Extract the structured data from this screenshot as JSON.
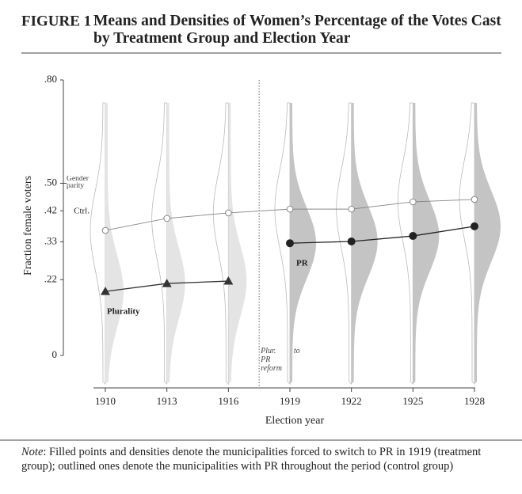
{
  "figure_label": "FIGURE 1",
  "chart_data": {
    "type": "line",
    "title": "Means and Densities of Women’s Percentage of the Votes Cast by Treatment Group and Election Year",
    "x_label": "Election year",
    "y_label": "Fraction female voters",
    "x": [
      1910,
      1913,
      1916,
      1919,
      1922,
      1925,
      1928
    ],
    "xlim": [
      1910,
      1928
    ],
    "ylim": [
      0,
      0.8
    ],
    "yticks": [
      0,
      {
        "value": 0.22,
        "label": ".22"
      },
      {
        "value": 0.33,
        "label": ".33"
      },
      {
        "value": 0.42,
        "label": ".42"
      },
      {
        "value": 0.5,
        "label": ".50"
      },
      {
        "value": 0.8,
        "label": ".80"
      }
    ],
    "series": [
      {
        "name": "Ctrl.",
        "color": "#888888",
        "marker": "open-circle",
        "values": [
          0.363,
          0.398,
          0.414,
          0.425,
          0.425,
          0.446,
          0.453
        ]
      },
      {
        "name": "Plurality",
        "color": "#333333",
        "marker": "triangle",
        "values": [
          0.186,
          0.209,
          0.216,
          null,
          null,
          null,
          null
        ]
      },
      {
        "name": "PR",
        "color": "#222222",
        "marker": "circle",
        "values": [
          null,
          null,
          null,
          0.326,
          0.331,
          0.347,
          0.375
        ]
      }
    ],
    "annotations": [
      {
        "text": "Gender parity",
        "y": 0.5
      },
      {
        "text": "Plur. to PR reform",
        "x": 1917.5
      }
    ]
  },
  "note": {
    "lead": "Note",
    "text": ": Filled points and densities denote the municipalities forced to switch to PR in 1919 (treatment group); outlined ones denote the municipalities with PR throughout the period (control group)"
  }
}
